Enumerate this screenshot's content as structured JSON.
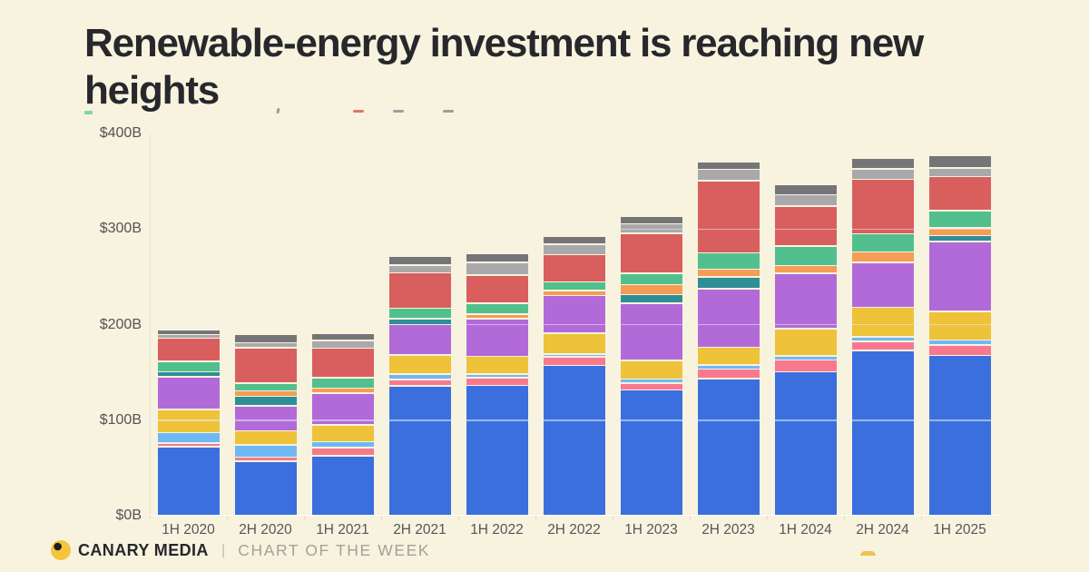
{
  "title": "Renewable-energy investment is reaching new heights",
  "footer": {
    "brand": "CANARY MEDIA",
    "separator": "|",
    "series_label": "CHART OF THE WEEK"
  },
  "colors": {
    "background": "#f8f3df",
    "title_text": "#26282b",
    "axis_text": "#54565a",
    "gridline": "#e6f0f8",
    "logo_yellow": "#f2c53d",
    "logo_pupil": "#1d1d1f",
    "dome_yellow": "#efc24a"
  },
  "chart_data": {
    "type": "bar",
    "stacked": true,
    "unit": "$B (billions of dollars)",
    "title": "Renewable-energy investment is reaching new heights",
    "xlabel": "",
    "ylabel": "",
    "ylim": [
      0,
      400
    ],
    "grid": true,
    "legend": "legend cropped out of frame at top",
    "yticks": [
      "$0B",
      "$100B",
      "$200B",
      "$300B",
      "$400B"
    ],
    "categories": [
      "1H 2020",
      "2H 2020",
      "1H 2021",
      "2H 2021",
      "1H 2022",
      "2H 2022",
      "1H 2023",
      "2H 2023",
      "1H 2024",
      "2H 2024",
      "1H 2025"
    ],
    "stack_order": "first series is bottom of stack",
    "series": [
      {
        "name": "blue",
        "color": "#3b6fde",
        "values": [
          71.5,
          56.5,
          62,
          135,
          135.5,
          156.5,
          131,
          143,
          150,
          172,
          167
        ]
      },
      {
        "name": "pink",
        "color": "#f8798f",
        "values": [
          2.5,
          2.5,
          7,
          5.5,
          7,
          7.5,
          5.5,
          8.5,
          11,
          8.5,
          9.5
        ]
      },
      {
        "name": "light-blue",
        "color": "#70b8f3",
        "values": [
          9.5,
          11.5,
          5,
          4,
          2,
          1.5,
          3,
          2.5,
          2.5,
          3,
          4
        ]
      },
      {
        "name": "gold",
        "color": "#eec239",
        "values": [
          22.5,
          13.5,
          16,
          18.5,
          17.5,
          20.5,
          18,
          17.5,
          27.5,
          29.5,
          28.5
        ]
      },
      {
        "name": "purple",
        "color": "#b26ad9",
        "values": [
          33,
          24.5,
          32,
          30.5,
          38,
          38,
          58.5,
          59.5,
          56.5,
          45.5,
          71.5
        ]
      },
      {
        "name": "teal",
        "color": "#2f8e98",
        "values": [
          4,
          8.5,
          0,
          5,
          0,
          0,
          7.5,
          11,
          0,
          0,
          5
        ]
      },
      {
        "name": "orange",
        "color": "#f59d55",
        "values": [
          0,
          4.5,
          3.5,
          0,
          3,
          4,
          9,
          7,
          6.5,
          9.5,
          6.5
        ]
      },
      {
        "name": "green",
        "color": "#51c08e",
        "values": [
          9.5,
          6.5,
          9.5,
          9.5,
          10,
          7.5,
          10.5,
          15.5,
          19,
          18,
          16.5
        ]
      },
      {
        "name": "red",
        "color": "#d95f5f",
        "values": [
          22.5,
          35.5,
          29.5,
          35.5,
          28,
          27,
          40.5,
          74,
          40.5,
          55.5,
          34.5
        ]
      },
      {
        "name": "light-gray",
        "color": "#a9a9ac",
        "values": [
          2.5,
          4,
          7,
          6.5,
          12,
          9.5,
          8.5,
          10.5,
          10.5,
          9.5,
          7.5
        ]
      },
      {
        "name": "dark-gray",
        "color": "#757578",
        "values": [
          4,
          7,
          5.5,
          8,
          7.5,
          6.5,
          6.5,
          6.5,
          9,
          9.5,
          12
        ]
      }
    ],
    "approx_totals": [
      195,
      187,
      190,
      266,
      268,
      297,
      313,
      375,
      352,
      379,
      387
    ]
  }
}
